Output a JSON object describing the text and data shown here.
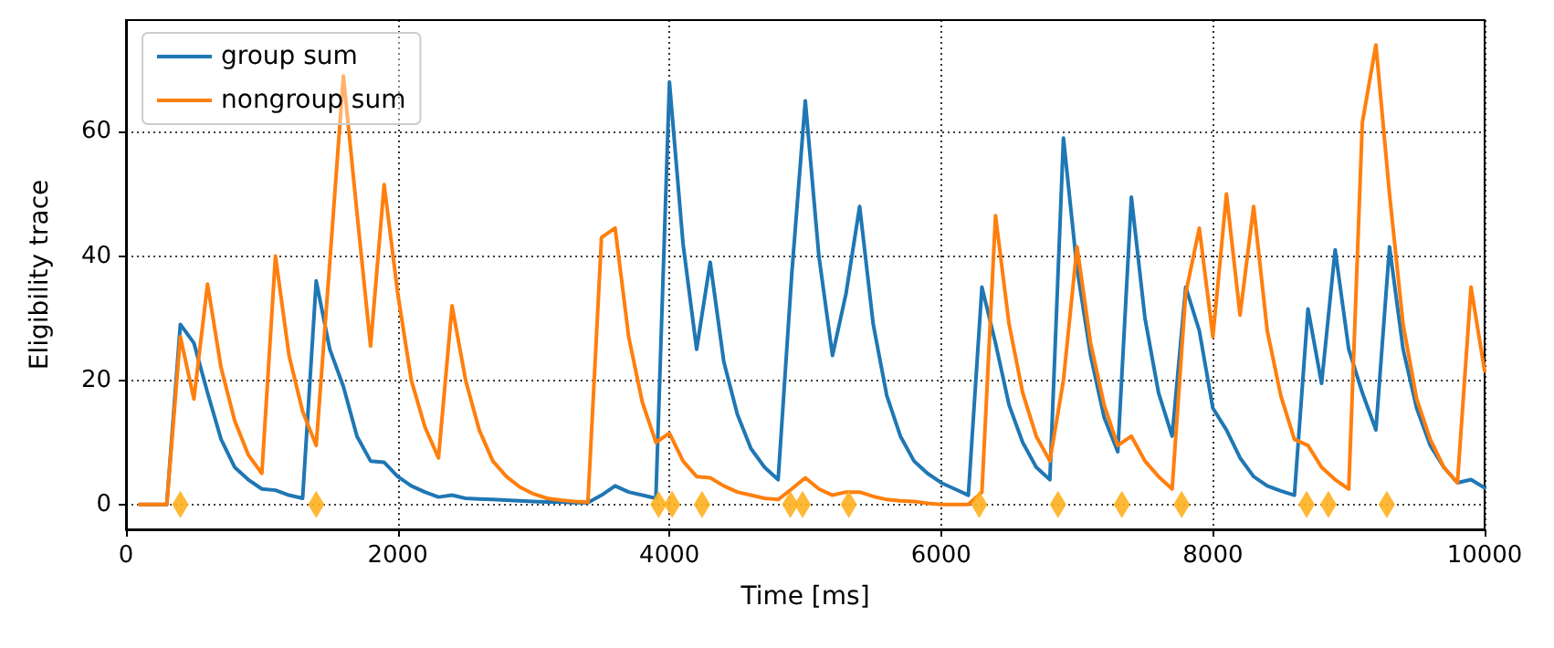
{
  "chart_data": {
    "type": "line",
    "xlabel": "Time [ms]",
    "ylabel": "Eligibility trace",
    "xlim": [
      0,
      10000
    ],
    "ylim": [
      -4,
      78
    ],
    "xticks": [
      0,
      2000,
      4000,
      6000,
      8000,
      10000
    ],
    "yticks": [
      0,
      20,
      40,
      60
    ],
    "grid": true,
    "legend": "top left",
    "line_style": "solid",
    "x": [
      100,
      200,
      300,
      400,
      500,
      600,
      700,
      800,
      900,
      1000,
      1100,
      1200,
      1300,
      1400,
      1500,
      1600,
      1700,
      1800,
      1900,
      2000,
      2100,
      2200,
      2300,
      2400,
      2500,
      2600,
      2700,
      2800,
      2900,
      3000,
      3100,
      3200,
      3300,
      3400,
      3500,
      3600,
      3700,
      3800,
      3900,
      4000,
      4100,
      4200,
      4300,
      4400,
      4500,
      4600,
      4700,
      4800,
      4900,
      5000,
      5100,
      5200,
      5300,
      5400,
      5500,
      5600,
      5700,
      5800,
      5900,
      6000,
      6100,
      6200,
      6300,
      6400,
      6500,
      6600,
      6700,
      6800,
      6900,
      7000,
      7100,
      7200,
      7300,
      7400,
      7500,
      7600,
      7700,
      7800,
      7900,
      8000,
      8100,
      8200,
      8300,
      8400,
      8500,
      8600,
      8700,
      8800,
      8900,
      9000,
      9100,
      9200,
      9300,
      9400,
      9500,
      9600,
      9700,
      9800,
      9900,
      10000
    ],
    "series": [
      {
        "name": "group sum",
        "color": "#1f77b4",
        "values": [
          0,
          0,
          0,
          29,
          26,
          18,
          10.5,
          6,
          4,
          2.5,
          2.3,
          1.5,
          1,
          36,
          25,
          19,
          11,
          7,
          6.8,
          4.5,
          3,
          2,
          1.2,
          1.5,
          1,
          0.9,
          0.8,
          0.7,
          0.6,
          0.5,
          0.4,
          0.4,
          0.3,
          0.3,
          1.5,
          3,
          2,
          1.5,
          1,
          68,
          42,
          25,
          39,
          23,
          14.5,
          9,
          6,
          4,
          37,
          65,
          40,
          24,
          34,
          48,
          29,
          17.5,
          11,
          7,
          5,
          3.5,
          2.5,
          1.5,
          35,
          26,
          16,
          10,
          6,
          4,
          59,
          38,
          24,
          14,
          8.5,
          49.5,
          30,
          18,
          11,
          35,
          28,
          15.5,
          12,
          7.5,
          4.5,
          3,
          2.2,
          1.5,
          31.5,
          19.5,
          41,
          25,
          18,
          12,
          41.5,
          25,
          15.5,
          9.5,
          6,
          3.5,
          4,
          2.7
        ]
      },
      {
        "name": "nongroup sum",
        "color": "#ff7f0e",
        "values": [
          0,
          0,
          0,
          27,
          17,
          35.5,
          22,
          13.5,
          8,
          5,
          40,
          24,
          15,
          9.5,
          39,
          69,
          47,
          25.5,
          51.5,
          34,
          20,
          12.5,
          7.5,
          32,
          20,
          12,
          7,
          4.5,
          2.8,
          1.7,
          1,
          0.7,
          0.5,
          0.4,
          43,
          44.5,
          27,
          16.5,
          10,
          11.5,
          7,
          4.5,
          4.3,
          3,
          2,
          1.5,
          1,
          0.8,
          2.5,
          4.3,
          2.5,
          1.5,
          2,
          2,
          1.3,
          0.8,
          0.6,
          0.5,
          0.2,
          0,
          0,
          0,
          2,
          46.5,
          29,
          18,
          11,
          7,
          20,
          41.5,
          26,
          16,
          9.5,
          11,
          7,
          4.5,
          2.5,
          34,
          44.5,
          27,
          50,
          30.5,
          48,
          28,
          17.5,
          10.5,
          9.5,
          6,
          4,
          2.5,
          61.5,
          74,
          50,
          29,
          17,
          10.5,
          6,
          3.5,
          35,
          21.5
        ]
      },
      {
        "type": "scatter",
        "marker": "diamond",
        "color": "#ffb01f",
        "x": [
          400,
          1400,
          3920,
          4020,
          4240,
          4890,
          4980,
          5320,
          6280,
          6860,
          7330,
          7770,
          8690,
          8850,
          9280
        ],
        "values": [
          0,
          0,
          0,
          0,
          0,
          0,
          0,
          0,
          0,
          0,
          0,
          0,
          0,
          0,
          0
        ]
      }
    ]
  }
}
